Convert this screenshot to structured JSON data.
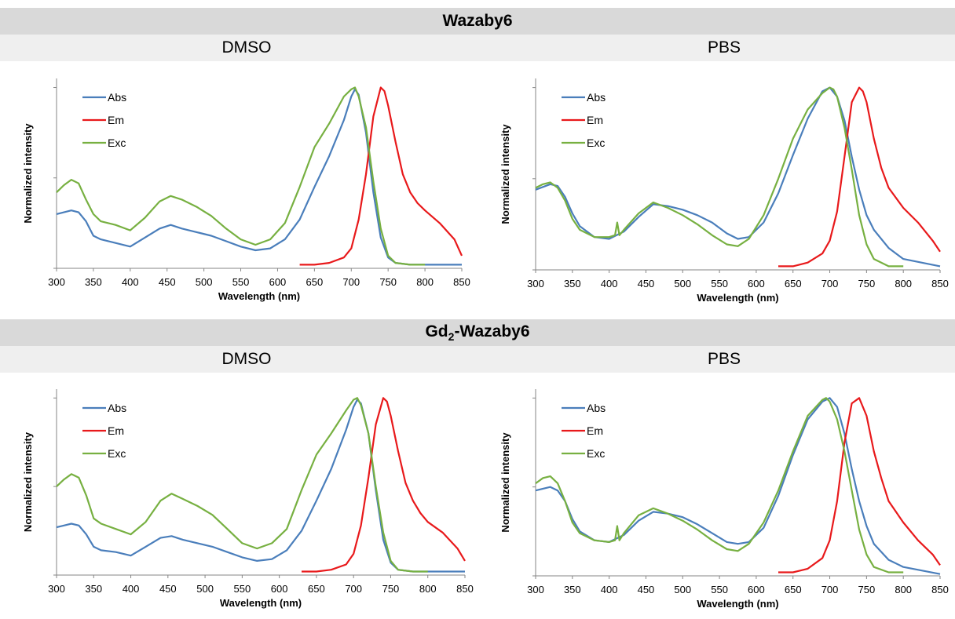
{
  "titles": {
    "top": "Wazaby6",
    "bottom_prefix": "Gd",
    "bottom_sub": "2",
    "bottom_suffix": "-Wazaby6",
    "left": "DMSO",
    "right": "PBS"
  },
  "colors": {
    "Abs": "#4a7ebb",
    "Em": "#e8191b",
    "Exc": "#77b041",
    "banner": "#d9d9d9",
    "subbanner": "#efefef"
  },
  "chart_data": [
    {
      "type": "line",
      "compound": "Wazaby6",
      "solvent": "DMSO",
      "xlabel": "Wavelength (nm)",
      "ylabel": "Normalized intensity",
      "xlim": [
        300,
        850
      ],
      "ylim": [
        0,
        1.05
      ],
      "xticks": [
        "300",
        "350",
        "400",
        "450",
        "500",
        "550",
        "600",
        "650",
        "700",
        "750",
        "800",
        "850"
      ],
      "legend": "top-left",
      "grid": false,
      "series": [
        {
          "name": "Abs",
          "x": [
            300,
            310,
            320,
            330,
            340,
            350,
            360,
            380,
            400,
            420,
            440,
            455,
            470,
            490,
            510,
            530,
            550,
            570,
            590,
            610,
            630,
            650,
            670,
            690,
            700,
            705,
            710,
            720,
            730,
            740,
            750,
            760,
            780,
            800,
            850
          ],
          "y": [
            0.3,
            0.31,
            0.32,
            0.31,
            0.26,
            0.18,
            0.16,
            0.14,
            0.12,
            0.17,
            0.22,
            0.24,
            0.22,
            0.2,
            0.18,
            0.15,
            0.12,
            0.1,
            0.11,
            0.16,
            0.27,
            0.45,
            0.62,
            0.82,
            0.95,
            0.99,
            0.96,
            0.75,
            0.42,
            0.17,
            0.06,
            0.03,
            0.02,
            0.02,
            0.02
          ]
        },
        {
          "name": "Em",
          "x": [
            630,
            650,
            670,
            690,
            700,
            710,
            720,
            730,
            740,
            745,
            750,
            760,
            770,
            780,
            790,
            800,
            820,
            840,
            850
          ],
          "y": [
            0.02,
            0.02,
            0.03,
            0.06,
            0.11,
            0.27,
            0.52,
            0.84,
            1.0,
            0.98,
            0.9,
            0.7,
            0.52,
            0.42,
            0.36,
            0.32,
            0.25,
            0.16,
            0.07
          ]
        },
        {
          "name": "Exc",
          "x": [
            300,
            310,
            320,
            330,
            340,
            350,
            360,
            380,
            400,
            420,
            440,
            455,
            470,
            490,
            510,
            530,
            550,
            570,
            590,
            610,
            630,
            650,
            670,
            690,
            700,
            705,
            710,
            720,
            730,
            740,
            750,
            760,
            780,
            800
          ],
          "y": [
            0.42,
            0.46,
            0.49,
            0.47,
            0.38,
            0.3,
            0.26,
            0.24,
            0.21,
            0.28,
            0.37,
            0.4,
            0.38,
            0.34,
            0.29,
            0.22,
            0.16,
            0.13,
            0.16,
            0.25,
            0.45,
            0.67,
            0.8,
            0.95,
            0.99,
            1.0,
            0.95,
            0.78,
            0.48,
            0.22,
            0.07,
            0.03,
            0.02,
            0.02
          ]
        }
      ]
    },
    {
      "type": "line",
      "compound": "Wazaby6",
      "solvent": "PBS",
      "xlabel": "Wavelength (nm)",
      "ylabel": "Normalized intensity",
      "xlim": [
        300,
        850
      ],
      "ylim": [
        0,
        1.05
      ],
      "xticks": [
        "300",
        "350",
        "400",
        "450",
        "500",
        "550",
        "600",
        "650",
        "700",
        "750",
        "800",
        "850"
      ],
      "legend": "top-left",
      "grid": false,
      "series": [
        {
          "name": "Abs",
          "x": [
            300,
            320,
            330,
            340,
            350,
            360,
            380,
            400,
            420,
            440,
            460,
            480,
            500,
            520,
            540,
            560,
            575,
            590,
            610,
            630,
            650,
            670,
            690,
            700,
            710,
            720,
            730,
            740,
            750,
            760,
            780,
            800,
            850
          ],
          "y": [
            0.44,
            0.47,
            0.46,
            0.4,
            0.31,
            0.24,
            0.18,
            0.17,
            0.21,
            0.29,
            0.36,
            0.35,
            0.33,
            0.3,
            0.26,
            0.2,
            0.17,
            0.18,
            0.26,
            0.42,
            0.63,
            0.83,
            0.98,
            1.0,
            0.95,
            0.82,
            0.62,
            0.44,
            0.3,
            0.22,
            0.12,
            0.06,
            0.02
          ]
        },
        {
          "name": "Em",
          "x": [
            630,
            650,
            670,
            690,
            700,
            710,
            720,
            730,
            740,
            745,
            750,
            760,
            770,
            780,
            800,
            820,
            840,
            850
          ],
          "y": [
            0.02,
            0.02,
            0.04,
            0.09,
            0.16,
            0.32,
            0.62,
            0.92,
            1.0,
            0.98,
            0.92,
            0.72,
            0.56,
            0.45,
            0.34,
            0.26,
            0.16,
            0.1
          ]
        },
        {
          "name": "Exc",
          "x": [
            300,
            310,
            320,
            330,
            340,
            350,
            360,
            380,
            400,
            408,
            411,
            414,
            420,
            440,
            460,
            480,
            500,
            520,
            540,
            560,
            575,
            590,
            610,
            630,
            650,
            670,
            690,
            700,
            705,
            710,
            720,
            730,
            740,
            750,
            760,
            780,
            800
          ],
          "y": [
            0.45,
            0.47,
            0.48,
            0.45,
            0.38,
            0.28,
            0.22,
            0.18,
            0.18,
            0.19,
            0.26,
            0.19,
            0.22,
            0.31,
            0.37,
            0.34,
            0.3,
            0.25,
            0.19,
            0.14,
            0.13,
            0.17,
            0.3,
            0.5,
            0.72,
            0.88,
            0.97,
            1.0,
            0.99,
            0.95,
            0.78,
            0.55,
            0.3,
            0.14,
            0.06,
            0.02,
            0.02
          ]
        }
      ]
    },
    {
      "type": "line",
      "compound": "Gd2-Wazaby6",
      "solvent": "DMSO",
      "xlabel": "Wavelength (nm)",
      "ylabel": "Normalized intensity",
      "xlim": [
        300,
        850
      ],
      "ylim": [
        0,
        1.05
      ],
      "xticks": [
        "300",
        "350",
        "400",
        "450",
        "500",
        "550",
        "600",
        "650",
        "700",
        "750",
        "800",
        "850"
      ],
      "legend": "top-left",
      "grid": false,
      "series": [
        {
          "name": "Abs",
          "x": [
            300,
            310,
            320,
            330,
            340,
            350,
            360,
            380,
            400,
            420,
            440,
            455,
            470,
            490,
            510,
            530,
            550,
            570,
            590,
            610,
            630,
            650,
            670,
            690,
            700,
            705,
            710,
            720,
            730,
            740,
            750,
            760,
            780,
            800,
            850
          ],
          "y": [
            0.27,
            0.28,
            0.29,
            0.28,
            0.23,
            0.16,
            0.14,
            0.13,
            0.11,
            0.16,
            0.21,
            0.22,
            0.2,
            0.18,
            0.16,
            0.13,
            0.1,
            0.08,
            0.09,
            0.14,
            0.25,
            0.42,
            0.6,
            0.82,
            0.95,
            0.99,
            0.97,
            0.8,
            0.48,
            0.2,
            0.07,
            0.03,
            0.02,
            0.02,
            0.02
          ]
        },
        {
          "name": "Em",
          "x": [
            630,
            650,
            670,
            690,
            700,
            710,
            720,
            730,
            740,
            745,
            750,
            760,
            770,
            780,
            790,
            800,
            820,
            840,
            850
          ],
          "y": [
            0.02,
            0.02,
            0.03,
            0.06,
            0.12,
            0.28,
            0.55,
            0.85,
            1.0,
            0.98,
            0.9,
            0.7,
            0.52,
            0.42,
            0.35,
            0.3,
            0.24,
            0.15,
            0.08
          ]
        },
        {
          "name": "Exc",
          "x": [
            300,
            310,
            320,
            330,
            340,
            350,
            360,
            380,
            400,
            420,
            440,
            455,
            470,
            490,
            510,
            530,
            550,
            570,
            590,
            610,
            630,
            650,
            670,
            690,
            700,
            705,
            710,
            720,
            730,
            740,
            750,
            760,
            780,
            800
          ],
          "y": [
            0.5,
            0.54,
            0.57,
            0.55,
            0.45,
            0.32,
            0.29,
            0.26,
            0.23,
            0.3,
            0.42,
            0.46,
            0.43,
            0.39,
            0.34,
            0.26,
            0.18,
            0.15,
            0.18,
            0.26,
            0.48,
            0.68,
            0.8,
            0.93,
            0.99,
            1.0,
            0.96,
            0.8,
            0.5,
            0.24,
            0.08,
            0.03,
            0.02,
            0.02
          ]
        }
      ]
    },
    {
      "type": "line",
      "compound": "Gd2-Wazaby6",
      "solvent": "PBS",
      "xlabel": "Wavelength (nm)",
      "ylabel": "Normalized intensity",
      "xlim": [
        300,
        850
      ],
      "ylim": [
        0,
        1.05
      ],
      "xticks": [
        "300",
        "350",
        "400",
        "450",
        "500",
        "550",
        "600",
        "650",
        "700",
        "750",
        "800",
        "850"
      ],
      "legend": "top-left",
      "grid": false,
      "series": [
        {
          "name": "Abs",
          "x": [
            300,
            320,
            330,
            340,
            350,
            360,
            380,
            400,
            420,
            440,
            460,
            480,
            500,
            520,
            540,
            560,
            575,
            590,
            610,
            630,
            650,
            670,
            690,
            700,
            710,
            720,
            730,
            740,
            750,
            760,
            780,
            800,
            850
          ],
          "y": [
            0.48,
            0.5,
            0.48,
            0.42,
            0.32,
            0.25,
            0.2,
            0.19,
            0.23,
            0.31,
            0.36,
            0.35,
            0.33,
            0.29,
            0.24,
            0.19,
            0.18,
            0.19,
            0.27,
            0.45,
            0.68,
            0.88,
            0.98,
            1.0,
            0.95,
            0.8,
            0.6,
            0.42,
            0.28,
            0.18,
            0.09,
            0.05,
            0.01
          ]
        },
        {
          "name": "Em",
          "x": [
            630,
            650,
            670,
            690,
            700,
            710,
            720,
            730,
            740,
            750,
            760,
            770,
            780,
            800,
            820,
            840,
            850
          ],
          "y": [
            0.02,
            0.02,
            0.04,
            0.1,
            0.2,
            0.42,
            0.75,
            0.97,
            1.0,
            0.9,
            0.7,
            0.55,
            0.42,
            0.3,
            0.2,
            0.12,
            0.06
          ]
        },
        {
          "name": "Exc",
          "x": [
            300,
            310,
            320,
            330,
            340,
            350,
            360,
            380,
            400,
            408,
            411,
            414,
            420,
            440,
            460,
            480,
            500,
            520,
            540,
            560,
            575,
            590,
            610,
            630,
            650,
            670,
            690,
            695,
            700,
            710,
            720,
            730,
            740,
            750,
            760,
            780,
            800
          ],
          "y": [
            0.52,
            0.55,
            0.56,
            0.52,
            0.42,
            0.3,
            0.24,
            0.2,
            0.19,
            0.2,
            0.28,
            0.2,
            0.24,
            0.34,
            0.38,
            0.35,
            0.31,
            0.26,
            0.2,
            0.15,
            0.14,
            0.18,
            0.3,
            0.48,
            0.7,
            0.9,
            0.99,
            1.0,
            0.98,
            0.88,
            0.7,
            0.48,
            0.26,
            0.12,
            0.05,
            0.02,
            0.02
          ]
        }
      ]
    }
  ]
}
